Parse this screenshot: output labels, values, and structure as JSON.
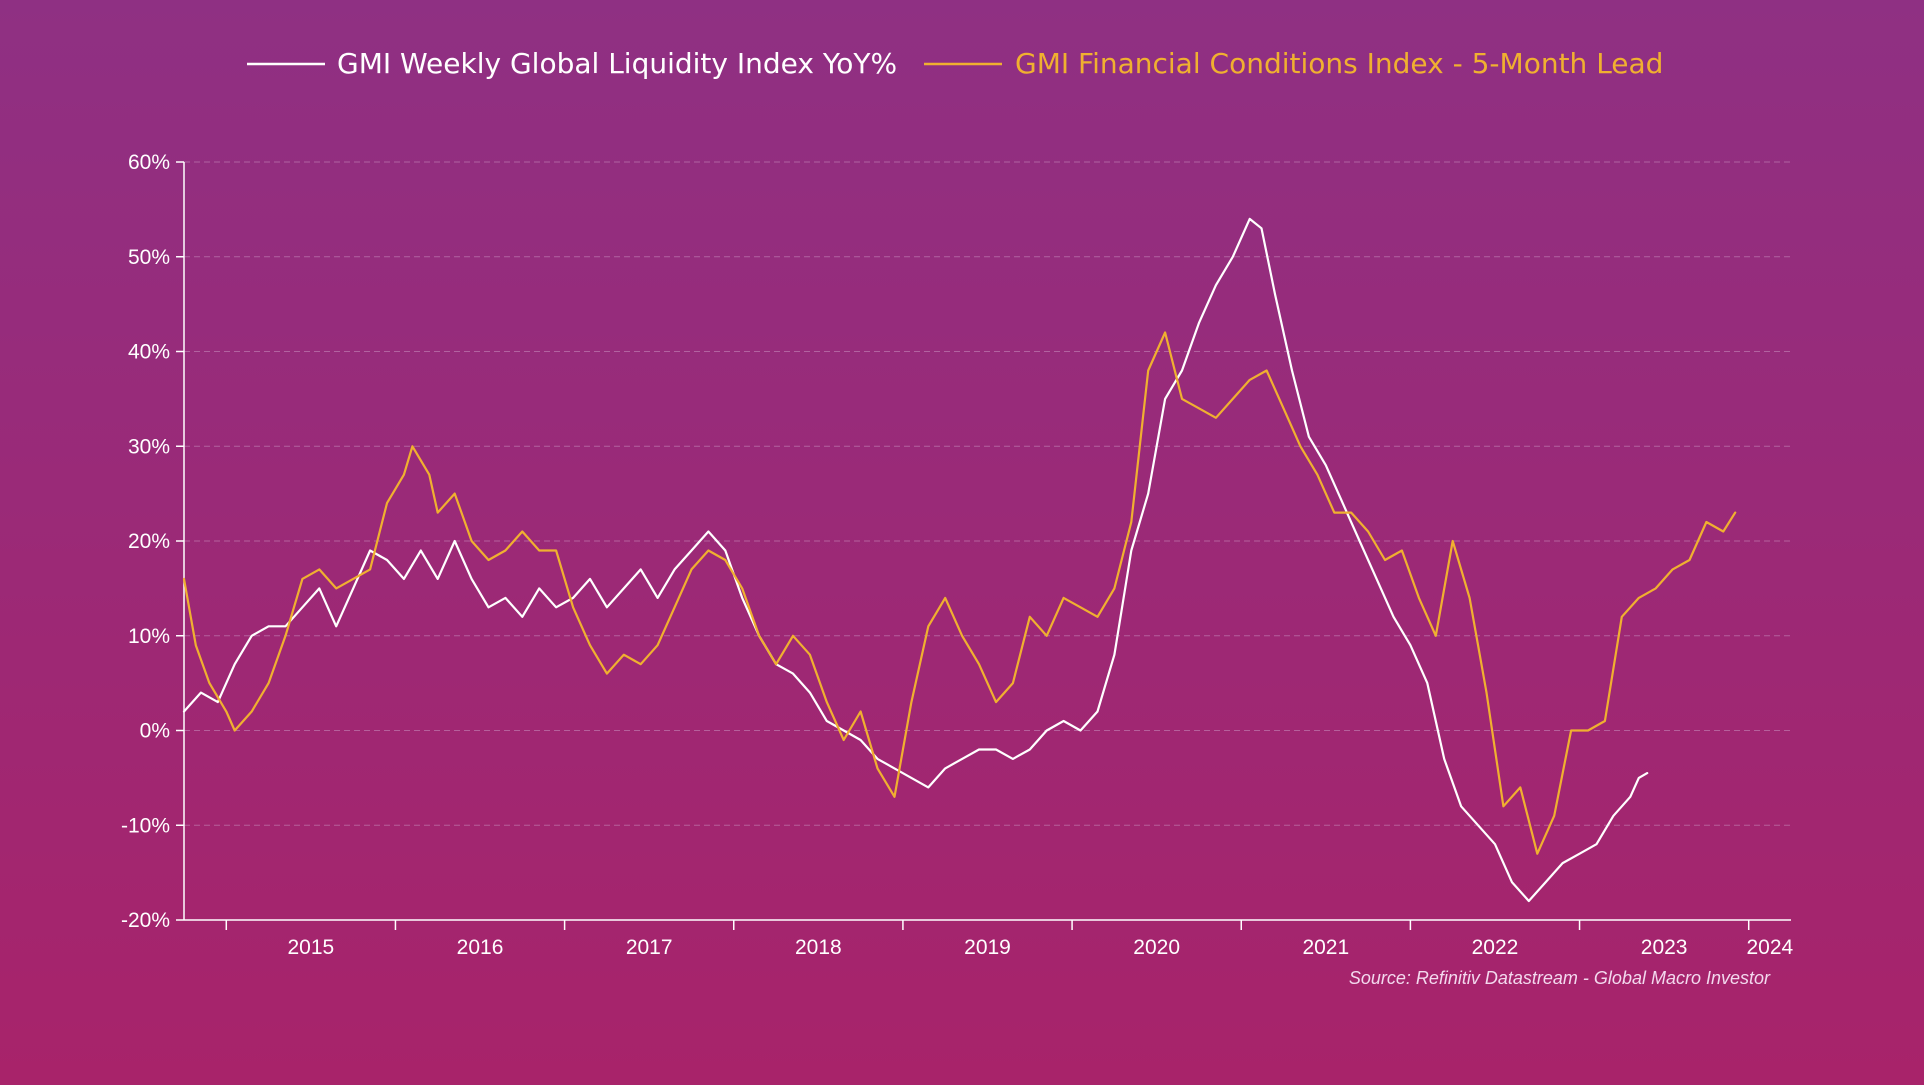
{
  "colors": {
    "liquidity": "#ffffff",
    "fci": "#f0b030",
    "axis": "#ffffff",
    "grid": "#c98fbf"
  },
  "chart_data": {
    "type": "line",
    "title": "",
    "xlabel": "",
    "ylabel": "",
    "xlim": [
      2014.75,
      2024.25
    ],
    "ylim": [
      -20,
      60
    ],
    "y_ticks": [
      -20,
      -10,
      0,
      10,
      20,
      30,
      40,
      50,
      60
    ],
    "y_tick_labels": [
      "-20%",
      "-10%",
      "0%",
      "10%",
      "20%",
      "30%",
      "40%",
      "50%",
      "60%"
    ],
    "x_tick_labels": [
      {
        "label": "2015",
        "x": 2015
      },
      {
        "label": "2016",
        "x": 2016
      },
      {
        "label": "2017",
        "x": 2017
      },
      {
        "label": "2018",
        "x": 2018
      },
      {
        "label": "2019",
        "x": 2019
      },
      {
        "label": "2020",
        "x": 2020
      },
      {
        "label": "2021",
        "x": 2021
      },
      {
        "label": "2022",
        "x": 2022
      },
      {
        "label": "2023",
        "x": 2023
      },
      {
        "label": "2024",
        "x": 2024
      }
    ],
    "legend_position": "top",
    "source": "Source: Refinitiv Datastream - Global Macro Investor",
    "series": [
      {
        "name": "GMI Weekly Global Liquidity Index YoY%",
        "color_key": "liquidity",
        "points": [
          [
            2014.75,
            2
          ],
          [
            2014.85,
            4
          ],
          [
            2014.95,
            3
          ],
          [
            2015.05,
            7
          ],
          [
            2015.15,
            10
          ],
          [
            2015.25,
            11
          ],
          [
            2015.35,
            11
          ],
          [
            2015.45,
            13
          ],
          [
            2015.55,
            15
          ],
          [
            2015.65,
            11
          ],
          [
            2015.75,
            15
          ],
          [
            2015.85,
            19
          ],
          [
            2015.95,
            18
          ],
          [
            2016.05,
            16
          ],
          [
            2016.15,
            19
          ],
          [
            2016.25,
            16
          ],
          [
            2016.35,
            20
          ],
          [
            2016.45,
            16
          ],
          [
            2016.55,
            13
          ],
          [
            2016.65,
            14
          ],
          [
            2016.75,
            12
          ],
          [
            2016.85,
            15
          ],
          [
            2016.95,
            13
          ],
          [
            2017.05,
            14
          ],
          [
            2017.15,
            16
          ],
          [
            2017.25,
            13
          ],
          [
            2017.35,
            15
          ],
          [
            2017.45,
            17
          ],
          [
            2017.55,
            14
          ],
          [
            2017.65,
            17
          ],
          [
            2017.75,
            19
          ],
          [
            2017.85,
            21
          ],
          [
            2017.95,
            19
          ],
          [
            2018.05,
            14
          ],
          [
            2018.15,
            10
          ],
          [
            2018.25,
            7
          ],
          [
            2018.35,
            6
          ],
          [
            2018.45,
            4
          ],
          [
            2018.55,
            1
          ],
          [
            2018.65,
            0
          ],
          [
            2018.75,
            -1
          ],
          [
            2018.85,
            -3
          ],
          [
            2018.95,
            -4
          ],
          [
            2019.05,
            -5
          ],
          [
            2019.15,
            -6
          ],
          [
            2019.25,
            -4
          ],
          [
            2019.35,
            -3
          ],
          [
            2019.45,
            -2
          ],
          [
            2019.55,
            -2
          ],
          [
            2019.65,
            -3
          ],
          [
            2019.75,
            -2
          ],
          [
            2019.85,
            0
          ],
          [
            2019.95,
            1
          ],
          [
            2020.05,
            0
          ],
          [
            2020.15,
            2
          ],
          [
            2020.25,
            8
          ],
          [
            2020.35,
            19
          ],
          [
            2020.45,
            25
          ],
          [
            2020.55,
            35
          ],
          [
            2020.65,
            38
          ],
          [
            2020.75,
            43
          ],
          [
            2020.85,
            47
          ],
          [
            2020.95,
            50
          ],
          [
            2021.05,
            54
          ],
          [
            2021.12,
            53
          ],
          [
            2021.2,
            46
          ],
          [
            2021.3,
            38
          ],
          [
            2021.4,
            31
          ],
          [
            2021.5,
            28
          ],
          [
            2021.6,
            24
          ],
          [
            2021.7,
            20
          ],
          [
            2021.8,
            16
          ],
          [
            2021.9,
            12
          ],
          [
            2022.0,
            9
          ],
          [
            2022.1,
            5
          ],
          [
            2022.2,
            -3
          ],
          [
            2022.3,
            -8
          ],
          [
            2022.4,
            -10
          ],
          [
            2022.5,
            -12
          ],
          [
            2022.6,
            -16
          ],
          [
            2022.7,
            -18
          ],
          [
            2022.8,
            -16
          ],
          [
            2022.9,
            -14
          ],
          [
            2023.0,
            -13
          ],
          [
            2023.1,
            -12
          ],
          [
            2023.2,
            -9
          ],
          [
            2023.3,
            -7
          ],
          [
            2023.35,
            -5
          ],
          [
            2023.4,
            -4.5
          ]
        ]
      },
      {
        "name": "GMI Financial Conditions Index - 5-Month Lead",
        "color_key": "fci",
        "points": [
          [
            2014.75,
            16
          ],
          [
            2014.82,
            9
          ],
          [
            2014.9,
            5
          ],
          [
            2015.0,
            2
          ],
          [
            2015.05,
            0
          ],
          [
            2015.15,
            2
          ],
          [
            2015.25,
            5
          ],
          [
            2015.35,
            10
          ],
          [
            2015.45,
            16
          ],
          [
            2015.55,
            17
          ],
          [
            2015.65,
            15
          ],
          [
            2015.75,
            16
          ],
          [
            2015.85,
            17
          ],
          [
            2015.95,
            24
          ],
          [
            2016.05,
            27
          ],
          [
            2016.1,
            30
          ],
          [
            2016.2,
            27
          ],
          [
            2016.25,
            23
          ],
          [
            2016.35,
            25
          ],
          [
            2016.45,
            20
          ],
          [
            2016.55,
            18
          ],
          [
            2016.65,
            19
          ],
          [
            2016.75,
            21
          ],
          [
            2016.85,
            19
          ],
          [
            2016.95,
            19
          ],
          [
            2017.05,
            13
          ],
          [
            2017.15,
            9
          ],
          [
            2017.25,
            6
          ],
          [
            2017.35,
            8
          ],
          [
            2017.45,
            7
          ],
          [
            2017.55,
            9
          ],
          [
            2017.65,
            13
          ],
          [
            2017.75,
            17
          ],
          [
            2017.85,
            19
          ],
          [
            2017.95,
            18
          ],
          [
            2018.05,
            15
          ],
          [
            2018.15,
            10
          ],
          [
            2018.25,
            7
          ],
          [
            2018.35,
            10
          ],
          [
            2018.45,
            8
          ],
          [
            2018.55,
            3
          ],
          [
            2018.65,
            -1
          ],
          [
            2018.75,
            2
          ],
          [
            2018.85,
            -4
          ],
          [
            2018.95,
            -7
          ],
          [
            2019.05,
            3
          ],
          [
            2019.15,
            11
          ],
          [
            2019.25,
            14
          ],
          [
            2019.35,
            10
          ],
          [
            2019.45,
            7
          ],
          [
            2019.55,
            3
          ],
          [
            2019.65,
            5
          ],
          [
            2019.75,
            12
          ],
          [
            2019.85,
            10
          ],
          [
            2019.95,
            14
          ],
          [
            2020.05,
            13
          ],
          [
            2020.15,
            12
          ],
          [
            2020.25,
            15
          ],
          [
            2020.35,
            22
          ],
          [
            2020.45,
            38
          ],
          [
            2020.55,
            42
          ],
          [
            2020.65,
            35
          ],
          [
            2020.75,
            34
          ],
          [
            2020.85,
            33
          ],
          [
            2020.95,
            35
          ],
          [
            2021.05,
            37
          ],
          [
            2021.15,
            38
          ],
          [
            2021.25,
            34
          ],
          [
            2021.35,
            30
          ],
          [
            2021.45,
            27
          ],
          [
            2021.55,
            23
          ],
          [
            2021.65,
            23
          ],
          [
            2021.75,
            21
          ],
          [
            2021.85,
            18
          ],
          [
            2021.95,
            19
          ],
          [
            2022.05,
            14
          ],
          [
            2022.15,
            10
          ],
          [
            2022.25,
            20
          ],
          [
            2022.35,
            14
          ],
          [
            2022.45,
            4
          ],
          [
            2022.55,
            -8
          ],
          [
            2022.65,
            -6
          ],
          [
            2022.75,
            -13
          ],
          [
            2022.85,
            -9
          ],
          [
            2022.95,
            0
          ],
          [
            2023.05,
            0
          ],
          [
            2023.15,
            1
          ],
          [
            2023.25,
            12
          ],
          [
            2023.35,
            14
          ],
          [
            2023.45,
            15
          ],
          [
            2023.55,
            17
          ],
          [
            2023.65,
            18
          ],
          [
            2023.75,
            22
          ],
          [
            2023.85,
            21
          ],
          [
            2023.92,
            23
          ]
        ]
      }
    ]
  }
}
